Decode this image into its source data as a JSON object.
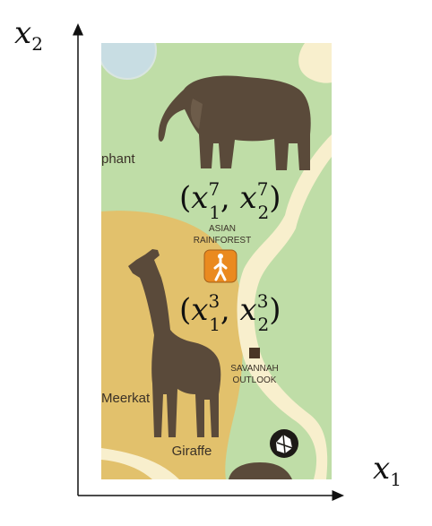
{
  "axes": {
    "x_label": {
      "base": "x",
      "sub": "1"
    },
    "y_label": {
      "base": "x",
      "sub": "2"
    }
  },
  "points": [
    {
      "name": "point-7",
      "label": "(x_1^7, x_2^7)",
      "base1": "x",
      "sub1": "1",
      "sup1": "7",
      "base2": "x",
      "sub2": "2",
      "sup2": "7"
    },
    {
      "name": "point-3",
      "label": "(x_1^3, x_2^3)",
      "base1": "x",
      "sub1": "1",
      "sup1": "3",
      "base2": "x",
      "sub2": "2",
      "sup2": "3"
    }
  ],
  "map": {
    "labels": {
      "elephant_partial": "phant",
      "asian_rainforest_line1": "ASIAN",
      "asian_rainforest_line2": "RAINFOREST",
      "savannah_line1": "SAVANNAH",
      "savannah_line2": "OUTLOOK",
      "meerkat_partial": "Meerkat",
      "giraffe": "Giraffe"
    },
    "icons": [
      "elephant-icon",
      "giraffe-icon",
      "walking-person-icon",
      "map-marker-square-icon",
      "turtle-icon",
      "boulder-icon"
    ],
    "colors": {
      "grass_green": "#bfdda7",
      "savannah_yellow": "#e2c16c",
      "path_cream": "#f8efcd",
      "animal_brown": "#5a4a3a",
      "sign_orange": "#ea8a1f",
      "water_blue": "#c8dde3"
    }
  }
}
